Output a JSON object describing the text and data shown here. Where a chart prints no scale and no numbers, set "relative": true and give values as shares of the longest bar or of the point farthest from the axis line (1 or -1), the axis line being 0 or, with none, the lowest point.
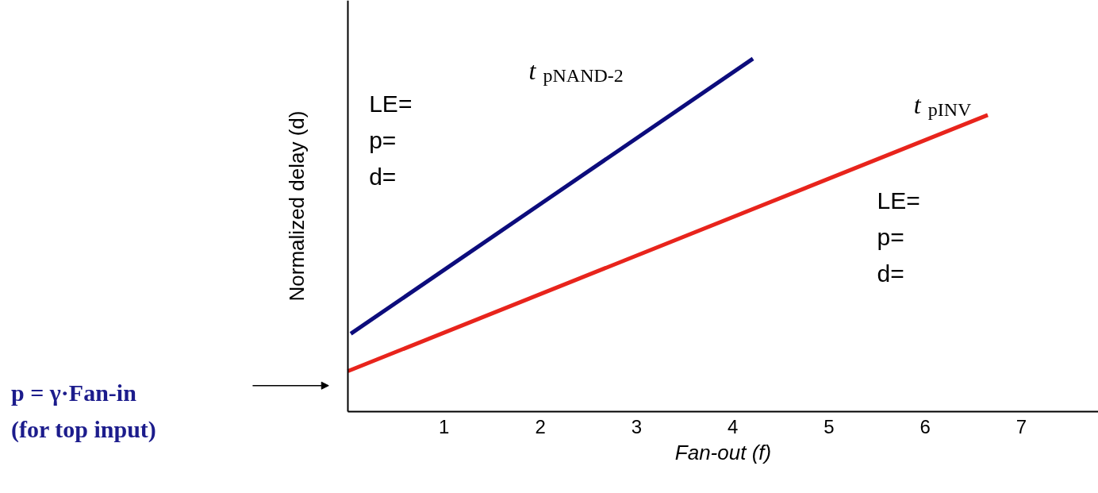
{
  "chart_data": {
    "type": "line",
    "xlabel": "Fan-out (f)",
    "ylabel": "Normalized delay (d)",
    "relative": true,
    "xlim": [
      0,
      7.8
    ],
    "xticks": [
      1,
      2,
      3,
      4,
      5,
      6,
      7
    ],
    "tick_labels": "x",
    "grid": false,
    "legend": false,
    "marker": "none",
    "line_style": "solid",
    "series": [
      {
        "name": "t$_{pNAND-2}$",
        "color": "#0c0c7c",
        "x": [
          0.03,
          4.21
        ],
        "values": [
          0.22,
          1
        ]
      },
      {
        "name": "t$_{pINV}$",
        "color": "#e8241c",
        "x": [
          0,
          6.65
        ],
        "values": [
          0.114,
          0.84
        ]
      }
    ],
    "annotations": [
      "LE=\np=\nd=",
      "LE=\np=\nd=",
      "p = γ·Fan-in\n(for top input)"
    ]
  }
}
